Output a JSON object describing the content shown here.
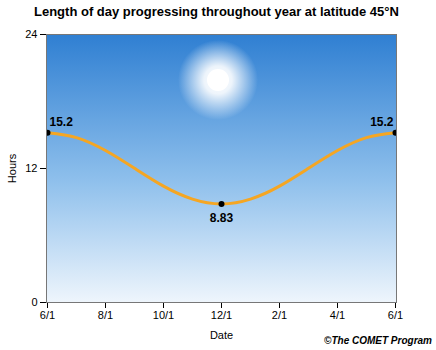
{
  "chart_data": {
    "type": "line",
    "title": "Length of day progressing throughout year at latitude 45°N",
    "x_label": "Date",
    "y_label": "Hours",
    "caption": "©The COMET Program",
    "categories": [
      "6/1",
      null,
      "8/1",
      null,
      "10/1",
      null,
      "12/1",
      null,
      "2/1",
      null,
      "4/1",
      null,
      "6/1"
    ],
    "values": [
      15.2,
      14.77,
      13.61,
      12.02,
      10.42,
      9.26,
      8.83,
      9.26,
      10.42,
      12.02,
      13.61,
      14.77,
      15.2
    ],
    "value_labels": [
      "15.2",
      null,
      null,
      null,
      null,
      null,
      "8.83",
      null,
      null,
      null,
      null,
      null,
      "15.2"
    ],
    "data_labels": true,
    "color": "#f5a623",
    "ylim": [
      0,
      24
    ],
    "yticks": [
      0,
      12,
      24
    ],
    "grid": false
  }
}
